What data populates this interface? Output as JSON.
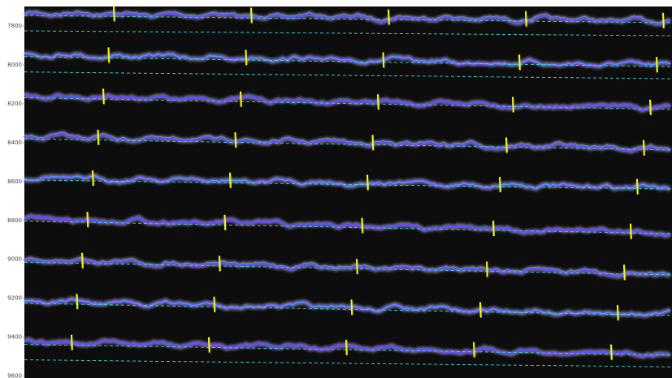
{
  "chart_data": {
    "type": "image",
    "ylim": [
      7700,
      9610
    ],
    "yticks": [
      7800,
      8000,
      8200,
      8400,
      8600,
      8800,
      9000,
      9200,
      9400,
      9600
    ]
  }
}
